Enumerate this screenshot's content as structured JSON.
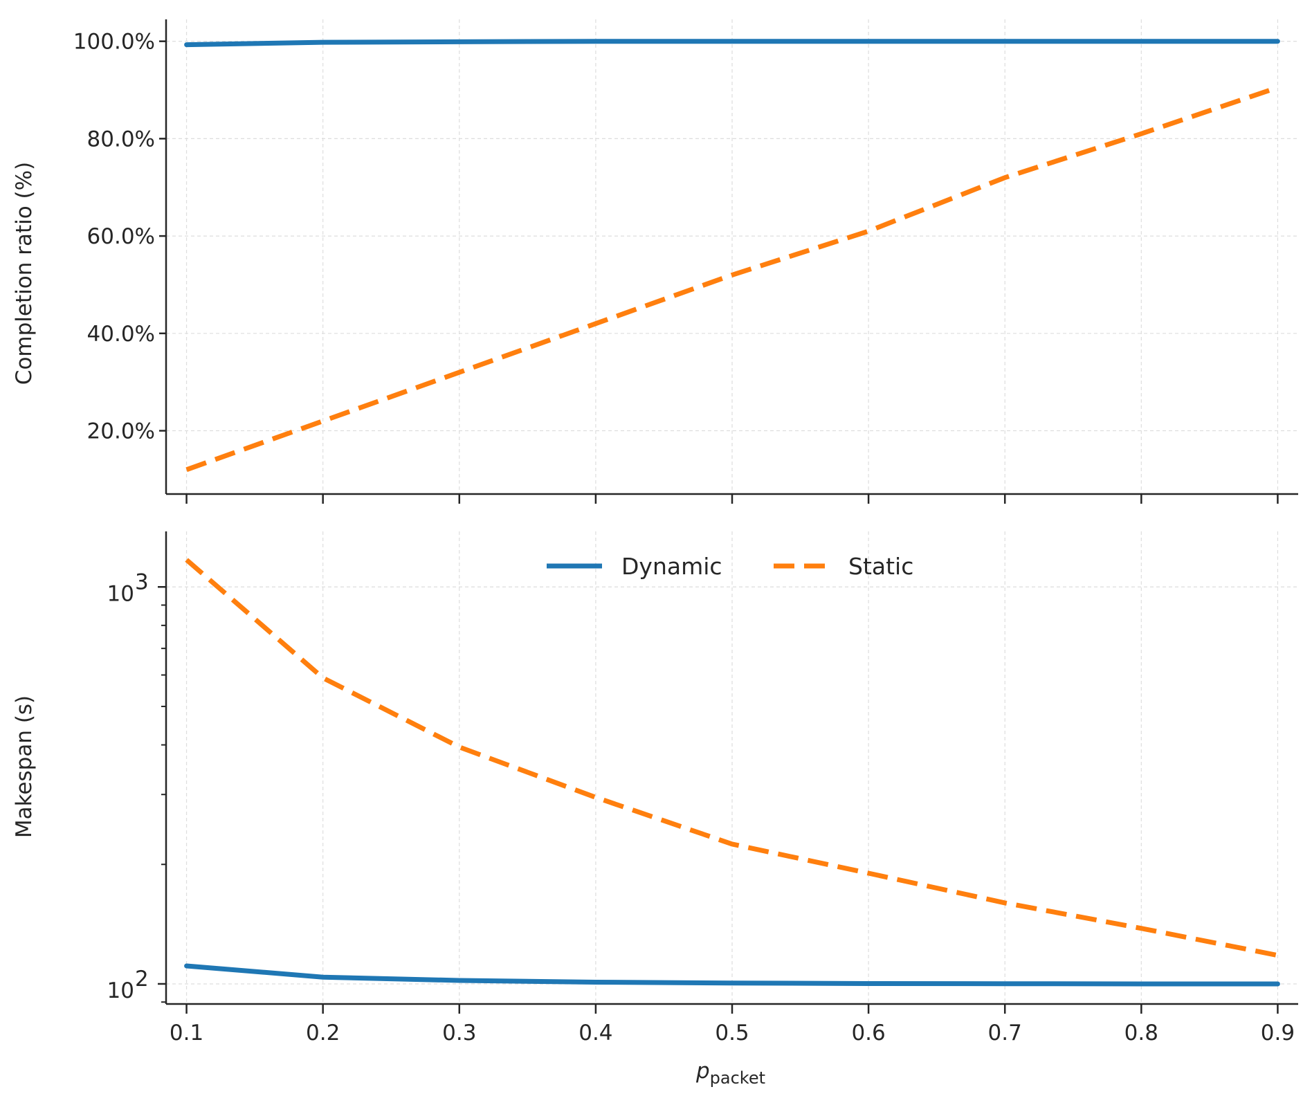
{
  "colors": {
    "dynamic": "#1f77b4",
    "static": "#ff7f0e",
    "axis": "#262626",
    "grid": "#dddddd"
  },
  "chart_data": [
    {
      "type": "line",
      "title": "",
      "xlabel": "",
      "ylabel": "Completion ratio (%)",
      "x": [
        0.1,
        0.2,
        0.3,
        0.4,
        0.5,
        0.6,
        0.7,
        0.8,
        0.9
      ],
      "xlim": [
        0.085,
        0.915
      ],
      "ylim": [
        7,
        104.5
      ],
      "yscale": "linear",
      "y_ticks": [
        20,
        40,
        60,
        80,
        100
      ],
      "y_tick_labels": [
        "20.0%",
        "40.0%",
        "60.0%",
        "80.0%",
        "100.0%"
      ],
      "grid": true,
      "series": [
        {
          "name": "Dynamic",
          "style": "solid",
          "values": [
            99.3,
            99.8,
            99.9,
            100,
            100,
            100,
            100,
            100,
            100
          ]
        },
        {
          "name": "Static",
          "style": "dashed",
          "values": [
            12,
            22,
            32,
            42,
            52,
            61,
            72,
            81,
            90.5
          ]
        }
      ]
    },
    {
      "type": "line",
      "title": "",
      "xlabel": "p_packet",
      "xlabel_main": "p",
      "xlabel_sub": "packet",
      "ylabel": "Makespan (s)",
      "x": [
        0.1,
        0.2,
        0.3,
        0.4,
        0.5,
        0.6,
        0.7,
        0.8,
        0.9
      ],
      "xlim": [
        0.085,
        0.915
      ],
      "x_tick_labels": [
        "0.1",
        "0.2",
        "0.3",
        "0.4",
        "0.5",
        "0.6",
        "0.7",
        "0.8",
        "0.9"
      ],
      "ylim": [
        89,
        1380
      ],
      "yscale": "log",
      "y_major_ticks": [
        100,
        1000
      ],
      "y_tick_base": "10",
      "y_tick_exponents": [
        "2",
        "3"
      ],
      "y_minor_ticks": [
        200,
        300,
        400,
        500,
        600,
        700,
        800,
        900
      ],
      "grid": true,
      "legend": {
        "position": "upper center",
        "ncol": 2
      },
      "series": [
        {
          "name": "Dynamic",
          "style": "solid",
          "values": [
            111,
            104,
            102,
            101,
            100.5,
            100.2,
            100.1,
            100,
            100
          ]
        },
        {
          "name": "Static",
          "style": "dashed",
          "values": [
            1170,
            590,
            395,
            295,
            225,
            190,
            160,
            138,
            118
          ]
        }
      ]
    }
  ]
}
